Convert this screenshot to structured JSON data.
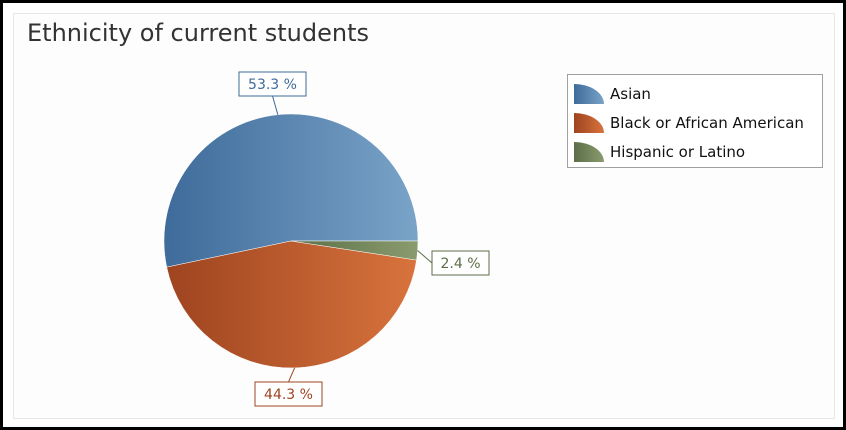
{
  "chart_data": {
    "type": "pie",
    "title": "Ethnicity of current students",
    "legend_position": "top-right",
    "slices": [
      {
        "label": "Asian",
        "value": 53.3,
        "data_label": "53.3 %",
        "color": "#4a7db0",
        "color_light": "#7aa3c8",
        "color_dark": "#3e6b9a"
      },
      {
        "label": "Black or African American",
        "value": 44.3,
        "data_label": "44.3 %",
        "color": "#c25a28",
        "color_light": "#d8733c",
        "color_dark": "#9e4420"
      },
      {
        "label": "Hispanic or Latino",
        "value": 2.4,
        "data_label": "2.4 %",
        "color": "#6f8257",
        "color_light": "#8a9c6e",
        "color_dark": "#5c6e47"
      }
    ]
  }
}
